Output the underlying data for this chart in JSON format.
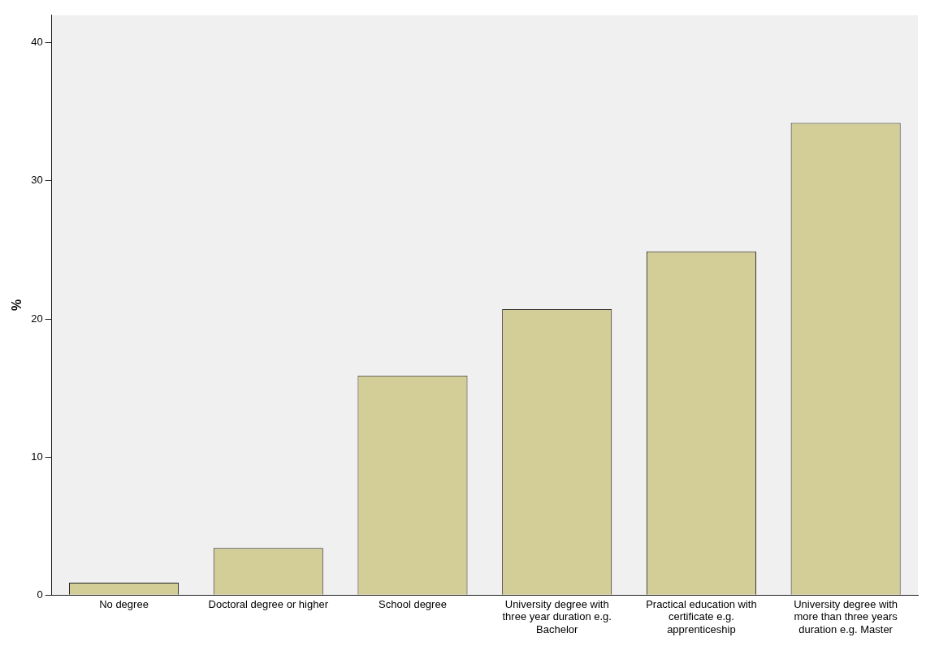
{
  "chart_data": {
    "type": "bar",
    "ylabel": "%",
    "categories": [
      "No degree",
      "Doctoral degree or higher",
      "School degree",
      "University degree with three year duration e.g. Bachelor",
      "Practical education with certificate e.g. apprenticeship",
      "University degree with more than three years duration e.g. Master"
    ],
    "values": [
      0.9,
      3.4,
      15.9,
      20.7,
      24.9,
      34.2
    ],
    "color": "#d3ce97",
    "ylim": [
      0,
      42
    ],
    "yticks": [
      0,
      10,
      20,
      30,
      40
    ],
    "grid": false,
    "legend": false
  }
}
